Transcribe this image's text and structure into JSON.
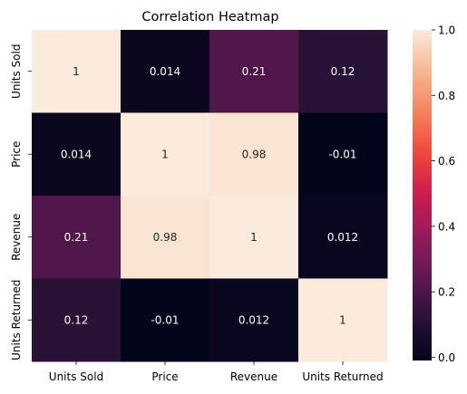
{
  "chart_data": {
    "type": "heatmap",
    "title": "Correlation Heatmap",
    "x_categories": [
      "Units Sold",
      "Price",
      "Revenue",
      "Units Returned"
    ],
    "y_categories": [
      "Units Sold",
      "Price",
      "Revenue",
      "Units Returned"
    ],
    "values": [
      [
        1,
        0.014,
        0.21,
        0.12
      ],
      [
        0.014,
        1,
        0.98,
        -0.01
      ],
      [
        0.21,
        0.98,
        1,
        0.012
      ],
      [
        0.12,
        -0.01,
        0.012,
        1
      ]
    ],
    "annotations": [
      [
        "1",
        "0.014",
        "0.21",
        "0.12"
      ],
      [
        "0.014",
        "1",
        "0.98",
        "-0.01"
      ],
      [
        "0.21",
        "0.98",
        "1",
        "0.012"
      ],
      [
        "0.12",
        "-0.01",
        "0.012",
        "1"
      ]
    ],
    "colorbar": {
      "range": [
        -0.01,
        1.0
      ],
      "ticks": [
        "0.0",
        "0.2",
        "0.4",
        "0.6",
        "0.8",
        "1.0"
      ],
      "colormap": "rocket"
    }
  }
}
